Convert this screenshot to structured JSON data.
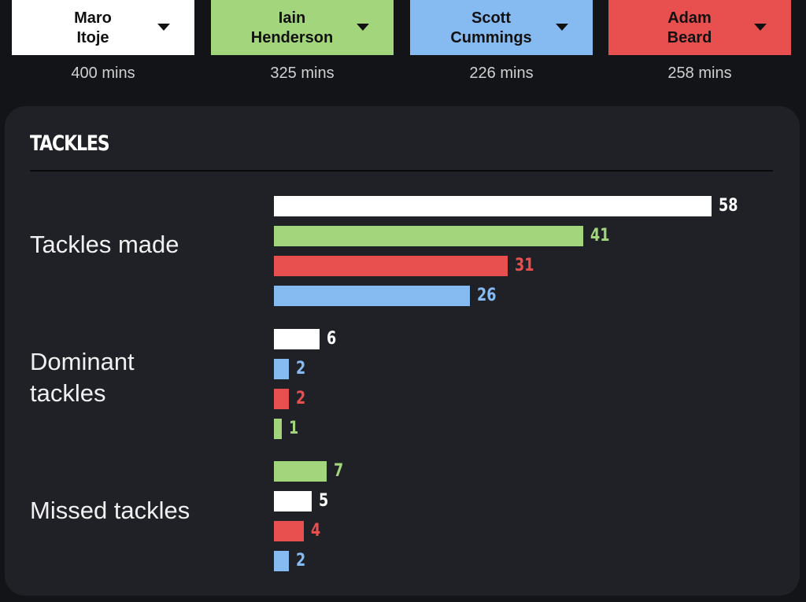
{
  "players": [
    {
      "name": "Maro\nItoje",
      "minutes": "400 mins",
      "color": "#ffffff",
      "key": "itoje"
    },
    {
      "name": "Iain\nHenderson",
      "minutes": "325 mins",
      "color": "#a3d67c",
      "key": "henderson"
    },
    {
      "name": "Scott\nCummings",
      "minutes": "226 mins",
      "color": "#86bbf2",
      "key": "cummings"
    },
    {
      "name": "Adam\nBeard",
      "minutes": "258 mins",
      "color": "#e85050",
      "key": "beard"
    }
  ],
  "dropdown_icon": "caret-down-icon",
  "section": {
    "title": "TACKLES"
  },
  "chart_data": {
    "type": "bar",
    "orientation": "horizontal",
    "title": "TACKLES",
    "groups": [
      {
        "label": "Tackles made",
        "bars": [
          {
            "player": "Maro Itoje",
            "value": 58,
            "color": "#ffffff"
          },
          {
            "player": "Iain Henderson",
            "value": 41,
            "color": "#a3d67c"
          },
          {
            "player": "Adam Beard",
            "value": 31,
            "color": "#e85050"
          },
          {
            "player": "Scott Cummings",
            "value": 26,
            "color": "#86bbf2"
          }
        ]
      },
      {
        "label": "Dominant\ntackles",
        "bars": [
          {
            "player": "Maro Itoje",
            "value": 6,
            "color": "#ffffff"
          },
          {
            "player": "Scott Cummings",
            "value": 2,
            "color": "#86bbf2"
          },
          {
            "player": "Adam Beard",
            "value": 2,
            "color": "#e85050"
          },
          {
            "player": "Iain Henderson",
            "value": 1,
            "color": "#a3d67c"
          }
        ]
      },
      {
        "label": "Missed tackles",
        "bars": [
          {
            "player": "Iain Henderson",
            "value": 7,
            "color": "#a3d67c"
          },
          {
            "player": "Maro Itoje",
            "value": 5,
            "color": "#ffffff"
          },
          {
            "player": "Adam Beard",
            "value": 4,
            "color": "#e85050"
          },
          {
            "player": "Scott Cummings",
            "value": 2,
            "color": "#86bbf2"
          }
        ]
      }
    ],
    "xlim": [
      0,
      58
    ]
  }
}
